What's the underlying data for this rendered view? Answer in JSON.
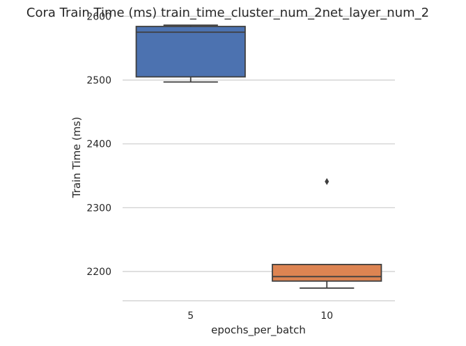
{
  "chart_data": {
    "type": "box",
    "title": "Cora Train Time (ms) train_time_cluster_num_2net_layer_num_2",
    "xlabel": "epochs_per_batch",
    "ylabel": "Train Time (ms)",
    "ylim": [
      2155,
      2600
    ],
    "yticks": [
      2200,
      2300,
      2400,
      2500,
      2600
    ],
    "ytick_labels": [
      "2200",
      "2300",
      "2400",
      "2500",
      "2600"
    ],
    "grid": "horizontal",
    "categories": [
      "5",
      "10"
    ],
    "boxes": [
      {
        "category": "5",
        "color": "#4c72b0",
        "whisker_low": 2497,
        "q1": 2505,
        "median": 2575,
        "q3": 2584,
        "whisker_high": 2586,
        "outliers": []
      },
      {
        "category": "10",
        "color": "#dd8452",
        "whisker_low": 2174,
        "q1": 2185,
        "median": 2192,
        "q3": 2211,
        "whisker_high": 2211,
        "outliers": [
          2341
        ]
      }
    ]
  }
}
